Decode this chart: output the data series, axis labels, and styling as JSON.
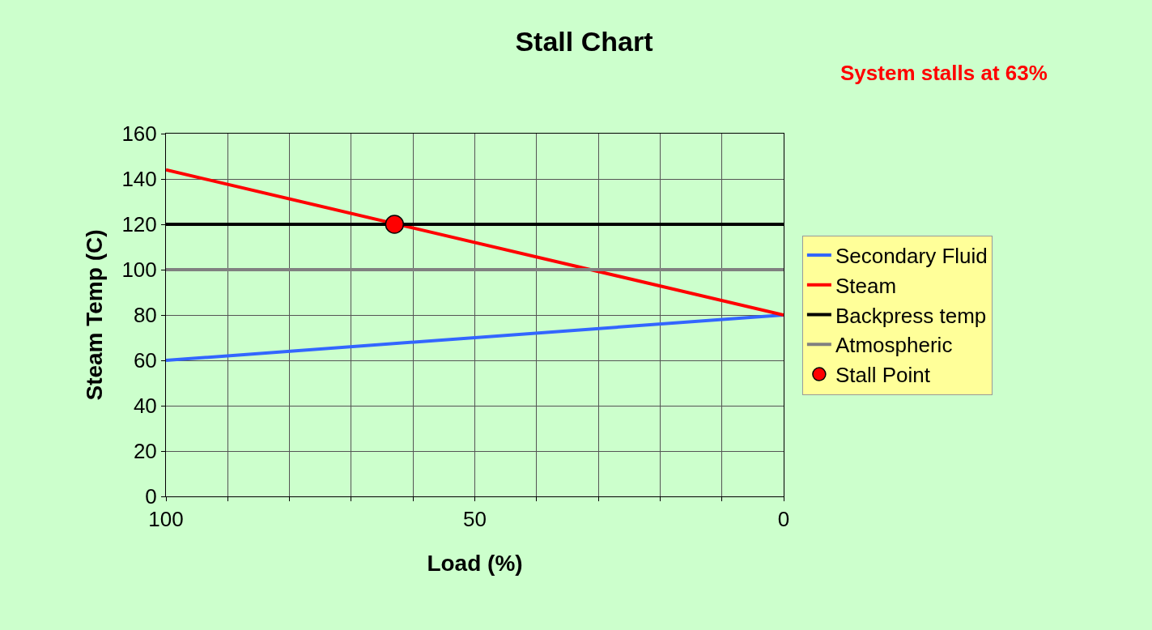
{
  "chart_data": {
    "type": "line",
    "title": "Stall Chart",
    "xlabel": "Load (%)",
    "ylabel": "Steam Temp (C)",
    "annotations": [
      "System stalls at 63%"
    ],
    "xlim": [
      100,
      0
    ],
    "xticks": [
      100,
      {
        "value": 90,
        "label": null
      },
      {
        "value": 80,
        "label": null
      },
      {
        "value": 70,
        "label": null
      },
      {
        "value": 60,
        "label": null
      },
      50,
      {
        "value": 40,
        "label": null
      },
      {
        "value": 30,
        "label": null
      },
      {
        "value": 20,
        "label": null
      },
      {
        "value": 10,
        "label": null
      },
      0
    ],
    "ylim": [
      0,
      160
    ],
    "yticks": [
      0,
      20,
      40,
      60,
      80,
      100,
      120,
      140,
      160
    ],
    "grid": true,
    "legend": "right",
    "marker": "none",
    "line_style": "solid",
    "series": [
      {
        "name": "Secondary Fluid",
        "color": "#3366ff",
        "x": [
          100,
          0
        ],
        "values": [
          60,
          80
        ]
      },
      {
        "name": "Steam",
        "color": "#ff0000",
        "x": [
          100,
          0
        ],
        "values": [
          144,
          80
        ]
      },
      {
        "name": "Backpress temp",
        "color": "#000000",
        "x": [
          100,
          0
        ],
        "values": [
          120,
          120
        ]
      },
      {
        "name": "Atmospheric",
        "color": "#808080",
        "x": [
          100,
          0
        ],
        "values": [
          100,
          100
        ]
      },
      {
        "name": "Stall Point",
        "type": "scatter",
        "marker": "circle",
        "color": "#ff0000",
        "x": [
          63
        ],
        "values": [
          120
        ]
      }
    ]
  }
}
